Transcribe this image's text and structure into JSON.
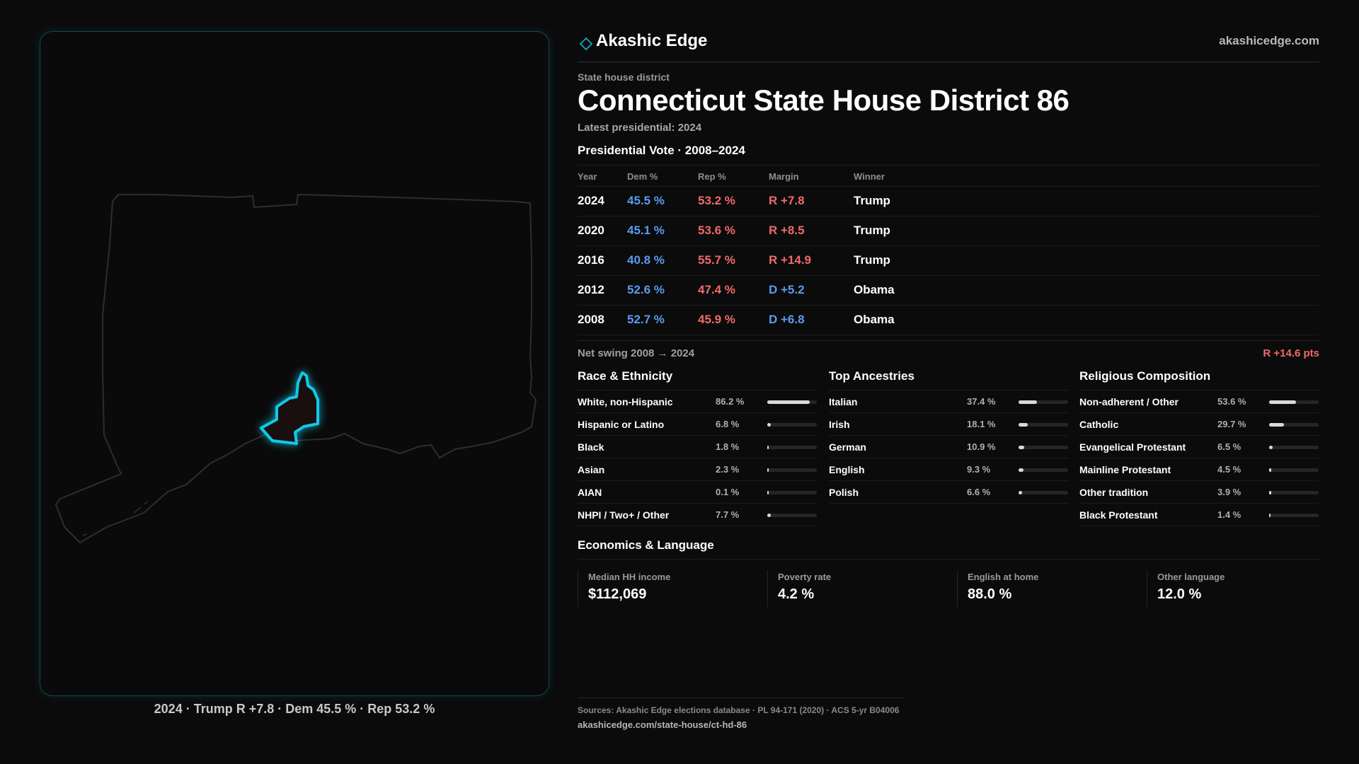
{
  "brand": {
    "name": "Akashic Edge",
    "url": "akashicedge.com"
  },
  "page": {
    "kicker": "State house district",
    "title": "Connecticut State House District 86",
    "subtitle": "Latest presidential: 2024"
  },
  "map": {
    "caption": "2024 · Trump R +7.8 · Dem 45.5 % · Rep 53.2 %",
    "outline_color": "#2e2e2e",
    "district_color": "#12c8e8"
  },
  "vote": {
    "heading": "Presidential Vote · 2008–2024",
    "headers": {
      "year": "Year",
      "dem": "Dem %",
      "rep": "Rep %",
      "margin": "Margin",
      "winner": "Winner"
    },
    "rows": [
      {
        "year": "2024",
        "dem": "45.5 %",
        "rep": "53.2 %",
        "margin": "R +7.8",
        "margin_party": "R",
        "winner": "Trump"
      },
      {
        "year": "2020",
        "dem": "45.1 %",
        "rep": "53.6 %",
        "margin": "R +8.5",
        "margin_party": "R",
        "winner": "Trump"
      },
      {
        "year": "2016",
        "dem": "40.8 %",
        "rep": "55.7 %",
        "margin": "R +14.9",
        "margin_party": "R",
        "winner": "Trump"
      },
      {
        "year": "2012",
        "dem": "52.6 %",
        "rep": "47.4 %",
        "margin": "D +5.2",
        "margin_party": "D",
        "winner": "Obama"
      },
      {
        "year": "2008",
        "dem": "52.7 %",
        "rep": "45.9 %",
        "margin": "D +6.8",
        "margin_party": "D",
        "winner": "Obama"
      }
    ],
    "swing_label": "Net swing 2008 → 2024",
    "swing_value": "R +14.6 pts"
  },
  "race": {
    "title": "Race & Ethnicity",
    "items": [
      {
        "label": "White, non-Hispanic",
        "value": "86.2 %",
        "pct": 86.2
      },
      {
        "label": "Hispanic or Latino",
        "value": "6.8 %",
        "pct": 6.8
      },
      {
        "label": "Black",
        "value": "1.8 %",
        "pct": 1.8
      },
      {
        "label": "Asian",
        "value": "2.3 %",
        "pct": 2.3
      },
      {
        "label": "AIAN",
        "value": "0.1 %",
        "pct": 0.1
      },
      {
        "label": "NHPI / Two+ / Other",
        "value": "7.7 %",
        "pct": 7.7
      }
    ]
  },
  "ancestry": {
    "title": "Top Ancestries",
    "items": [
      {
        "label": "Italian",
        "value": "37.4 %",
        "pct": 37.4
      },
      {
        "label": "Irish",
        "value": "18.1 %",
        "pct": 18.1
      },
      {
        "label": "German",
        "value": "10.9 %",
        "pct": 10.9
      },
      {
        "label": "English",
        "value": "9.3 %",
        "pct": 9.3
      },
      {
        "label": "Polish",
        "value": "6.6 %",
        "pct": 6.6
      }
    ]
  },
  "religion": {
    "title": "Religious Composition",
    "items": [
      {
        "label": "Non-adherent / Other",
        "value": "53.6 %",
        "pct": 53.6
      },
      {
        "label": "Catholic",
        "value": "29.7 %",
        "pct": 29.7
      },
      {
        "label": "Evangelical Protestant",
        "value": "6.5 %",
        "pct": 6.5
      },
      {
        "label": "Mainline Protestant",
        "value": "4.5 %",
        "pct": 4.5
      },
      {
        "label": "Other tradition",
        "value": "3.9 %",
        "pct": 3.9
      },
      {
        "label": "Black Protestant",
        "value": "1.4 %",
        "pct": 1.4
      }
    ]
  },
  "economics": {
    "title": "Economics & Language",
    "cards": [
      {
        "label": "Median HH income",
        "value": "$112,069"
      },
      {
        "label": "Poverty rate",
        "value": "4.2 %"
      },
      {
        "label": "English at home",
        "value": "88.0 %"
      },
      {
        "label": "Other language",
        "value": "12.0 %"
      }
    ]
  },
  "footer": {
    "sources": "Sources: Akashic Edge elections database · PL 94-171 (2020) · ACS 5-yr B04006",
    "link": "akashicedge.com/state-house/ct-hd-86"
  },
  "colors": {
    "dem": "#5b9bf0",
    "rep": "#f06a6a",
    "accent": "#12c8e8",
    "background": "#0b0b0b"
  }
}
